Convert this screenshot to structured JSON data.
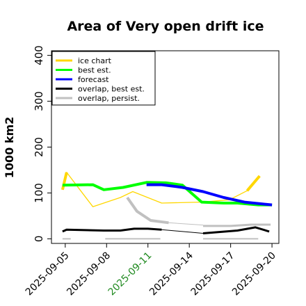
{
  "chart_data": {
    "type": "line",
    "title": "Area of Very open drift ice",
    "ylabel": "1000 km2",
    "xlabel": "",
    "ylim": [
      -10,
      410
    ],
    "yticks": [
      0,
      100,
      200,
      300,
      400
    ],
    "xlim": [
      4.0,
      20.5
    ],
    "xticks": [
      {
        "x": 5,
        "label": "2025-09-05",
        "color": "#000000"
      },
      {
        "x": 8,
        "label": "2025-09-08",
        "color": "#000000"
      },
      {
        "x": 11,
        "label": "2025-09-11",
        "color": "#228b22"
      },
      {
        "x": 14,
        "label": "2025-09-14",
        "color": "#000000"
      },
      {
        "x": 17,
        "label": "2025-09-17",
        "color": "#000000"
      },
      {
        "x": 20,
        "label": "2025-09-20",
        "color": "#000000"
      }
    ],
    "grid": false,
    "legend_position": "top-left",
    "series": [
      {
        "name": "ice chart",
        "color": "#ffd700",
        "width": 1.3,
        "x": [
          4.8,
          5.1,
          7.0,
          9.0,
          9.9,
          12.0,
          14.9,
          16.9,
          18.2,
          19.1
        ],
        "y": [
          107,
          145,
          70,
          90,
          103,
          78,
          80,
          85,
          105,
          137
        ]
      },
      {
        "name": "ice chart (thick)",
        "color": "#ffd700",
        "width": 4,
        "x": [
          4.8,
          5.1
        ],
        "y": [
          107,
          145
        ]
      },
      {
        "name": "ice chart (thick)",
        "color": "#ffd700",
        "width": 4,
        "x": [
          18.2,
          19.1
        ],
        "y": [
          105,
          137
        ]
      },
      {
        "name": "best est.",
        "color": "#00ff00",
        "width": 4,
        "x": [
          4.8,
          7.0,
          7.8,
          9.2,
          10.9,
          12.3,
          13.5,
          14.9,
          16.5,
          17.5,
          19.0,
          20.0
        ],
        "y": [
          117,
          118,
          107,
          112,
          123,
          122,
          117,
          80,
          78,
          78,
          74,
          74
        ]
      },
      {
        "name": "forecast",
        "color": "#0000ff",
        "width": 4,
        "x": [
          10.9,
          12.0,
          13.5,
          15.0,
          16.5,
          18.0,
          19.3,
          20.0
        ],
        "y": [
          118,
          118,
          112,
          103,
          90,
          80,
          76,
          74
        ]
      },
      {
        "name": "overlap, best est.",
        "color": "#000000",
        "width": 3,
        "x": [
          4.8,
          5.1,
          7.8,
          9.0,
          10.0,
          11.0,
          12.0
        ],
        "y": [
          16,
          20,
          18,
          18,
          22,
          22,
          20
        ]
      },
      {
        "name": "overlap, best est. (thin)",
        "color": "#000000",
        "width": 1,
        "x": [
          5.1,
          7.8
        ],
        "y": [
          20,
          18
        ]
      },
      {
        "name": "overlap, best est. (thin)",
        "color": "#000000",
        "width": 1,
        "x": [
          12.0,
          15.0
        ],
        "y": [
          20,
          12
        ]
      },
      {
        "name": "overlap, best est. (tail)",
        "color": "#000000",
        "width": 3,
        "x": [
          15.0,
          17.5,
          18.8,
          19.8
        ],
        "y": [
          12,
          18,
          25,
          16
        ]
      },
      {
        "name": "overlap, persist.",
        "color": "#c0c0c0",
        "width": 4,
        "x": [
          9.5,
          10.2,
          11.2,
          12.5
        ],
        "y": [
          90,
          60,
          40,
          35
        ]
      },
      {
        "name": "overlap, persist. (thin)",
        "color": "#c0c0c0",
        "width": 1,
        "x": [
          12.5,
          15.0
        ],
        "y": [
          35,
          30
        ]
      },
      {
        "name": "overlap, persist. (tail)",
        "color": "#c0c0c0",
        "width": 3,
        "x": [
          15.0,
          17.0,
          18.5,
          19.9
        ],
        "y": [
          28,
          28,
          31,
          31
        ]
      },
      {
        "name": "overlap, persist. (base)",
        "color": "#c0c0c0",
        "width": 2,
        "x": [
          4.8,
          5.4
        ],
        "y": [
          0,
          0
        ]
      },
      {
        "name": "overlap, persist. (base)",
        "color": "#c0c0c0",
        "width": 2,
        "x": [
          7.9,
          11.9
        ],
        "y": [
          0,
          0
        ]
      },
      {
        "name": "overlap, persist. (base)",
        "color": "#c0c0c0",
        "width": 2,
        "x": [
          15.0,
          19.0
        ],
        "y": [
          0,
          0
        ]
      }
    ],
    "legend": [
      {
        "name": "ice chart",
        "color": "#ffd700"
      },
      {
        "name": "best est.",
        "color": "#00ff00"
      },
      {
        "name": "forecast",
        "color": "#0000ff"
      },
      {
        "name": "overlap, best est.",
        "color": "#000000"
      },
      {
        "name": "overlap, persist.",
        "color": "#c0c0c0"
      }
    ]
  }
}
